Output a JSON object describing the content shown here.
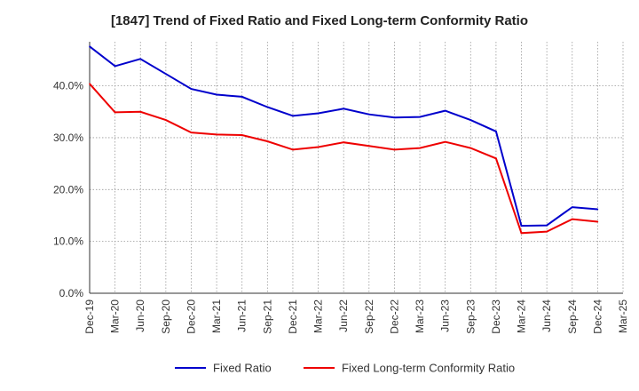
{
  "chart_data": {
    "type": "line",
    "title": "[1847]  Trend of Fixed Ratio and Fixed Long-term Conformity Ratio",
    "xlabel": "",
    "ylabel": "",
    "categories": [
      "Dec-19",
      "Mar-20",
      "Jun-20",
      "Sep-20",
      "Dec-20",
      "Mar-21",
      "Jun-21",
      "Sep-21",
      "Dec-21",
      "Mar-22",
      "Jun-22",
      "Sep-22",
      "Dec-22",
      "Mar-23",
      "Jun-23",
      "Sep-23",
      "Dec-23",
      "Mar-24",
      "Jun-24",
      "Sep-24",
      "Dec-24",
      "Mar-25"
    ],
    "y_ticks": [
      "0.0%",
      "10.0%",
      "20.0%",
      "30.0%",
      "40.0%"
    ],
    "ylim": [
      0,
      48.5
    ],
    "grid": true,
    "legend_position": "bottom",
    "series": [
      {
        "name": "Fixed Ratio",
        "color": "#0000cc",
        "values": [
          47.6,
          43.8,
          45.2,
          42.3,
          39.4,
          38.3,
          37.9,
          35.9,
          34.2,
          34.7,
          35.6,
          34.5,
          33.9,
          34.0,
          35.2,
          33.4,
          31.2,
          13.0,
          13.1,
          16.6,
          16.2,
          null
        ]
      },
      {
        "name": "Fixed Long-term Conformity Ratio",
        "color": "#ee0000",
        "values": [
          40.4,
          34.9,
          35.0,
          33.4,
          31.0,
          30.6,
          30.5,
          29.3,
          27.7,
          28.2,
          29.1,
          28.4,
          27.7,
          28.0,
          29.2,
          28.0,
          26.0,
          11.6,
          11.9,
          14.3,
          13.8,
          null
        ]
      }
    ]
  }
}
